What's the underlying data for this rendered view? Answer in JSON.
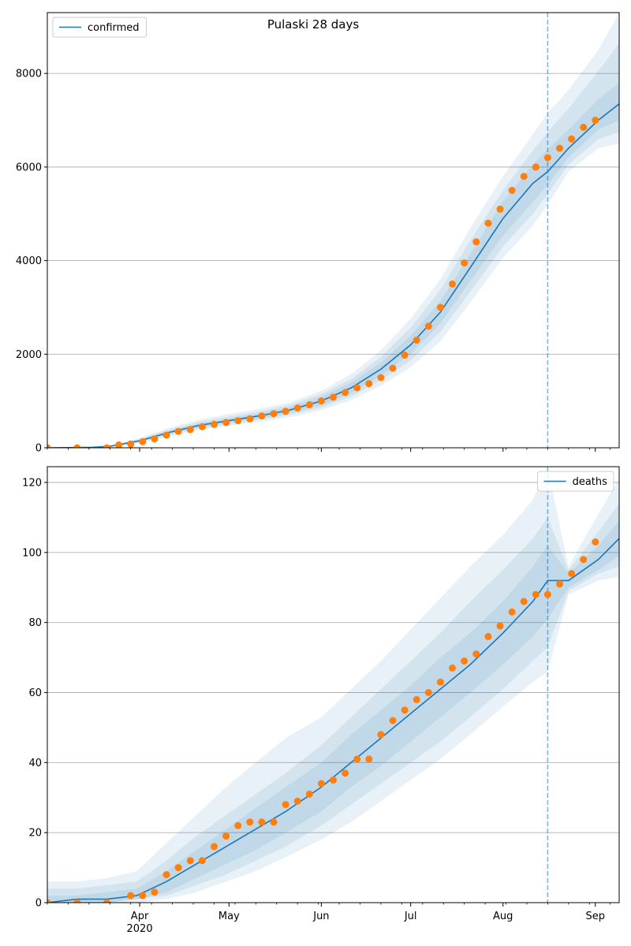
{
  "figure": {
    "title": "Pulaski 28 days"
  },
  "x_axis": {
    "ticks": [
      {
        "label": "Apr",
        "day": 31
      },
      {
        "label": "May",
        "day": 61
      },
      {
        "label": "Jun",
        "day": 92
      },
      {
        "label": "Jul",
        "day": 122
      },
      {
        "label": "Aug",
        "day": 153
      },
      {
        "label": "Sep",
        "day": 184
      }
    ],
    "year_label": "2020",
    "range_days": [
      0,
      192
    ],
    "start_date": "2020-03-01"
  },
  "colors": {
    "line": "#1f77b4",
    "points": "#ff7f0e",
    "band": "#1f77b4",
    "grid": "#b0b0b0",
    "vline": "#1f77b4"
  },
  "chart_data": [
    {
      "type": "line",
      "title": "Pulaski 28 days",
      "legend": {
        "label": "confirmed",
        "position": "top-left"
      },
      "ylim": [
        0,
        9300
      ],
      "yticks": [
        0,
        2000,
        4000,
        6000,
        8000
      ],
      "grid": "y",
      "forecast_start_day": 168,
      "model_line": {
        "x": [
          0,
          15,
          21,
          31,
          41,
          51,
          61,
          71,
          81,
          92,
          102,
          112,
          122,
          132,
          142,
          153,
          163,
          168,
          175,
          185,
          192
        ],
        "y": [
          0,
          10,
          30,
          150,
          330,
          480,
          580,
          680,
          800,
          1000,
          1280,
          1680,
          2200,
          2900,
          3850,
          4900,
          5650,
          5900,
          6400,
          7000,
          7350
        ]
      },
      "bands": [
        {
          "lower": [
            0,
            5,
            20,
            100,
            250,
            380,
            470,
            550,
            650,
            800,
            1020,
            1330,
            1720,
            2280,
            3100,
            4060,
            4750,
            5200,
            5900,
            6400,
            6500
          ],
          "upper": [
            0,
            20,
            45,
            210,
            430,
            600,
            720,
            830,
            960,
            1220,
            1570,
            2080,
            2760,
            3600,
            4700,
            5800,
            6700,
            7150,
            7650,
            8500,
            9300
          ]
        },
        {
          "lower": [
            0,
            6,
            23,
            115,
            275,
            410,
            505,
            590,
            700,
            860,
            1100,
            1440,
            1870,
            2480,
            3330,
            4300,
            5000,
            5420,
            6050,
            6600,
            6750
          ],
          "upper": [
            0,
            16,
            40,
            190,
            395,
            560,
            670,
            780,
            910,
            1150,
            1470,
            1940,
            2570,
            3380,
            4430,
            5500,
            6350,
            6750,
            7250,
            8050,
            8650
          ]
        },
        {
          "lower": [
            0,
            8,
            26,
            130,
            300,
            440,
            535,
            625,
            740,
            910,
            1170,
            1540,
            2010,
            2660,
            3560,
            4530,
            5250,
            5620,
            6200,
            6800,
            7000
          ],
          "upper": [
            0,
            13,
            35,
            170,
            360,
            520,
            625,
            735,
            860,
            1090,
            1390,
            1820,
            2390,
            3140,
            4140,
            5270,
            6050,
            6380,
            6800,
            7450,
            7800
          ]
        }
      ],
      "observed": {
        "x": [
          0,
          10,
          20,
          24,
          28,
          32,
          36,
          40,
          44,
          48,
          52,
          56,
          60,
          64,
          68,
          72,
          76,
          80,
          84,
          88,
          92,
          96,
          100,
          104,
          108,
          112,
          116,
          120,
          124,
          128,
          132,
          136,
          140,
          144,
          148,
          152,
          156,
          160,
          164,
          168,
          172,
          176,
          180,
          184
        ],
        "y": [
          0,
          0,
          0,
          60,
          80,
          130,
          190,
          270,
          350,
          390,
          450,
          500,
          540,
          580,
          620,
          680,
          730,
          780,
          850,
          920,
          1000,
          1080,
          1180,
          1280,
          1370,
          1500,
          1700,
          1980,
          2300,
          2600,
          3000,
          3500,
          3950,
          4400,
          4800,
          5100,
          5500,
          5800,
          6000,
          6200,
          6400,
          6600,
          6850,
          7000
        ]
      }
    },
    {
      "type": "line",
      "legend": {
        "label": "deaths",
        "position": "top-right"
      },
      "ylim": [
        0,
        124.5
      ],
      "yticks": [
        0,
        20,
        40,
        60,
        80,
        100,
        120
      ],
      "grid": "y",
      "forecast_start_day": 168,
      "model_line": {
        "x": [
          0,
          10,
          20,
          30,
          40,
          50,
          60,
          70,
          80,
          92,
          102,
          112,
          122,
          132,
          142,
          153,
          163,
          168,
          175,
          185,
          192
        ],
        "y": [
          0,
          1,
          1,
          2,
          6,
          11,
          16,
          21,
          26,
          33,
          40,
          47,
          54,
          61,
          68,
          77,
          86,
          92,
          92,
          98,
          104
        ]
      },
      "bands": [
        {
          "lower": [
            0,
            0,
            0,
            0,
            1,
            3,
            6,
            9,
            13,
            18,
            23,
            29,
            35,
            41,
            48,
            56,
            63,
            66,
            88,
            92,
            93
          ],
          "upper": [
            6,
            6,
            7,
            9,
            17,
            25,
            33,
            40,
            47,
            53,
            61,
            69,
            78,
            87,
            96,
            105,
            115,
            124,
            96,
            111,
            121
          ]
        },
        {
          "lower": [
            0,
            0,
            0,
            1,
            2,
            5,
            8,
            12,
            16,
            22,
            28,
            34,
            40,
            46,
            53,
            61,
            69,
            73,
            89,
            94,
            96
          ],
          "upper": [
            4,
            4,
            5,
            6,
            12,
            19,
            25,
            31,
            37,
            45,
            53,
            61,
            69,
            77,
            86,
            95,
            104,
            110,
            95,
            106,
            114
          ]
        },
        {
          "lower": [
            0,
            0,
            0,
            1,
            3,
            7,
            11,
            15,
            20,
            26,
            33,
            39,
            46,
            53,
            60,
            68,
            76,
            81,
            90,
            95,
            99
          ],
          "upper": [
            2,
            2,
            3,
            4,
            9,
            15,
            21,
            27,
            33,
            40,
            48,
            55,
            62,
            70,
            77,
            86,
            96,
            102,
            94,
            102,
            109
          ]
        }
      ],
      "observed": {
        "x": [
          0,
          10,
          20,
          28,
          32,
          36,
          40,
          44,
          48,
          52,
          56,
          60,
          64,
          68,
          72,
          76,
          80,
          84,
          88,
          92,
          96,
          100,
          104,
          108,
          112,
          116,
          120,
          124,
          128,
          132,
          136,
          140,
          144,
          148,
          152,
          156,
          160,
          164,
          168,
          172,
          176,
          180,
          184
        ],
        "y": [
          0,
          0,
          0,
          2,
          2,
          3,
          8,
          10,
          12,
          12,
          16,
          19,
          22,
          23,
          23,
          23,
          28,
          29,
          31,
          34,
          35,
          37,
          41,
          41,
          48,
          52,
          55,
          58,
          60,
          63,
          67,
          69,
          71,
          76,
          79,
          83,
          86,
          88,
          88,
          91,
          94,
          98,
          103
        ]
      }
    }
  ]
}
